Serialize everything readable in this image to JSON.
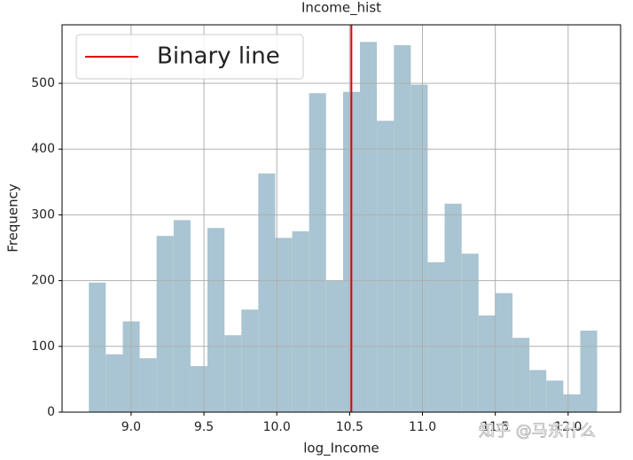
{
  "chart_data": {
    "type": "histogram",
    "title": "Income_hist",
    "x_label": "log_Income",
    "y_label": "Frequency",
    "bins": [
      8.71,
      8.826,
      8.943,
      9.059,
      9.175,
      9.292,
      9.408,
      9.524,
      9.641,
      9.757,
      9.873,
      9.989,
      10.106,
      10.222,
      10.338,
      10.455,
      10.571,
      10.687,
      10.804,
      10.92,
      11.036,
      11.152,
      11.269,
      11.385,
      11.501,
      11.618,
      11.734,
      11.85,
      11.967,
      12.083,
      12.199
    ],
    "counts": [
      197,
      88,
      138,
      82,
      268,
      292,
      70,
      280,
      117,
      156,
      363,
      265,
      275,
      485,
      200,
      487,
      563,
      443,
      558,
      498,
      228,
      317,
      241,
      147,
      181,
      113,
      64,
      48,
      27,
      124
    ],
    "color": "#a9c4d2",
    "xlim": [
      8.526,
      12.36
    ],
    "ylim": [
      0,
      589
    ],
    "xticks": [
      {
        "value": 9,
        "label": "9.0"
      },
      {
        "value": 9.5,
        "label": "9.5"
      },
      {
        "value": 10,
        "label": "10.0"
      },
      {
        "value": 10.5,
        "label": "10.5"
      },
      {
        "value": 11,
        "label": "11.0"
      },
      {
        "value": 11.5,
        "label": "11.5"
      },
      {
        "value": 12,
        "label": "12.0"
      }
    ],
    "yticks": [
      0,
      100,
      200,
      300,
      400,
      500
    ],
    "grid": true,
    "vline": {
      "value": 10.512,
      "label": "Binary line",
      "color": "#e00000"
    },
    "legend_position": "upper left",
    "watermark": "知乎 @马东什么"
  }
}
